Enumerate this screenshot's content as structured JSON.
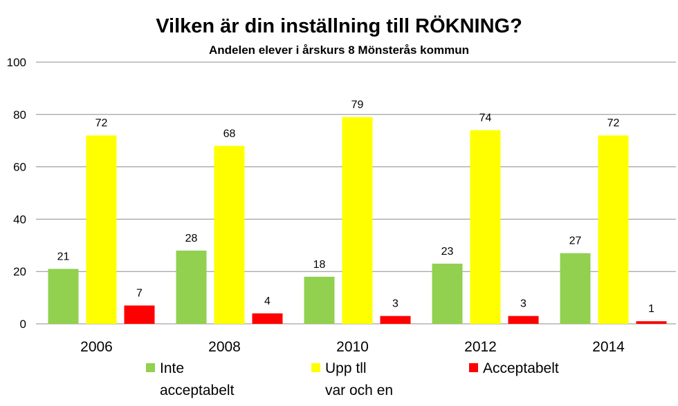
{
  "chart_data": {
    "type": "bar",
    "title": "Vilken är din inställning till RÖKNING?",
    "subtitle": "Andelen elever i årskurs 8 Mönsterås kommun",
    "categories": [
      "2006",
      "2008",
      "2010",
      "2012",
      "2014"
    ],
    "series": [
      {
        "name": "Inte acceptabelt",
        "name_lines": [
          "Inte",
          "acceptabelt"
        ],
        "color": "#92d050",
        "values": [
          21,
          28,
          18,
          23,
          27
        ]
      },
      {
        "name": "Upp tll var och en",
        "name_lines": [
          "Upp tll",
          "var och en"
        ],
        "color": "#ffff00",
        "values": [
          72,
          68,
          79,
          74,
          72
        ]
      },
      {
        "name": "Acceptabelt",
        "name_lines": [
          "Acceptabelt"
        ],
        "color": "#ff0000",
        "values": [
          7,
          4,
          3,
          3,
          1
        ]
      }
    ],
    "yticks": [
      "0",
      "20",
      "40",
      "60",
      "80",
      "100"
    ],
    "ylim": [
      0,
      100
    ],
    "grid": true,
    "legend": "bottom",
    "data_labels": true
  }
}
